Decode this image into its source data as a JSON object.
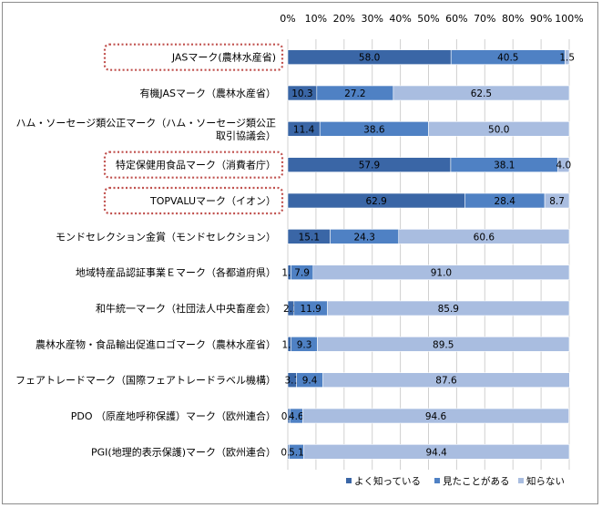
{
  "chart_data": {
    "type": "bar",
    "stacked": true,
    "orientation": "horizontal",
    "percent_stacked": true,
    "x_ticks": [
      "0%",
      "10%",
      "20%",
      "30%",
      "40%",
      "50%",
      "60%",
      "70%",
      "80%",
      "90%",
      "100%"
    ],
    "xlim": [
      0,
      100
    ],
    "grid": true,
    "legend_position": "bottom-right",
    "categories": [
      [
        "JASマーク(農林水産省)"
      ],
      [
        "有機JASマーク（農林水産省）"
      ],
      [
        "ハム・ソーセージ類公正マーク（ハム・ソーセージ類公正",
        "取引協議会）"
      ],
      [
        "特定保健用食品マーク（消費者庁）"
      ],
      [
        "TOPVALUマーク（イオン）"
      ],
      [
        "モンドセレクション金賞（モンドセレクション）"
      ],
      [
        "地域特産品認証事業Ｅマーク（各都道府県）"
      ],
      [
        "和牛統一マーク（社団法人中央畜産会）"
      ],
      [
        "農林水産物・食品輸出促進ロゴマーク（農林水産省）"
      ],
      [
        "フェアトレードマーク（国際フェアトレードラベル機構）"
      ],
      [
        "PDO （原産地呼称保護）マーク（欧州連合）"
      ],
      [
        "PGI(地理的表示保護)マーク（欧州連合）"
      ]
    ],
    "highlighted": [
      true,
      false,
      false,
      true,
      true,
      false,
      false,
      false,
      false,
      false,
      false,
      false
    ],
    "series": [
      {
        "name": "よく知っている",
        "color": "#3a66a6",
        "values": [
          58.0,
          10.3,
          11.4,
          57.9,
          62.9,
          15.1,
          1.1,
          2.2,
          1.2,
          3.1,
          0.7,
          0.5
        ],
        "labels": [
          "58.0",
          "10.3",
          "11.4",
          "57.9",
          "62.9",
          "15.1",
          "1.1",
          "2.2",
          "1.2",
          "3.1",
          "0.7",
          "0.5"
        ]
      },
      {
        "name": "見たことがある",
        "color": "#4f81c4",
        "values": [
          40.5,
          27.2,
          38.6,
          38.1,
          28.4,
          24.3,
          7.9,
          11.9,
          9.3,
          9.4,
          4.6,
          5.1
        ],
        "labels": [
          "40.5",
          "27.2",
          "38.6",
          "38.1",
          "28.4",
          "24.3",
          "7.9",
          "11.9",
          "9.3",
          "9.4",
          "4.6",
          "5.1"
        ]
      },
      {
        "name": "知らない",
        "color": "#a9bde0",
        "values": [
          1.5,
          62.5,
          50.0,
          4.0,
          8.7,
          60.6,
          91.0,
          85.9,
          89.5,
          87.6,
          94.6,
          94.4
        ],
        "labels": [
          "1.5",
          "62.5",
          "50.0",
          "4.0",
          "8.7",
          "60.6",
          "91.0",
          "85.9",
          "89.5",
          "87.6",
          "94.6",
          "94.4"
        ]
      }
    ]
  }
}
